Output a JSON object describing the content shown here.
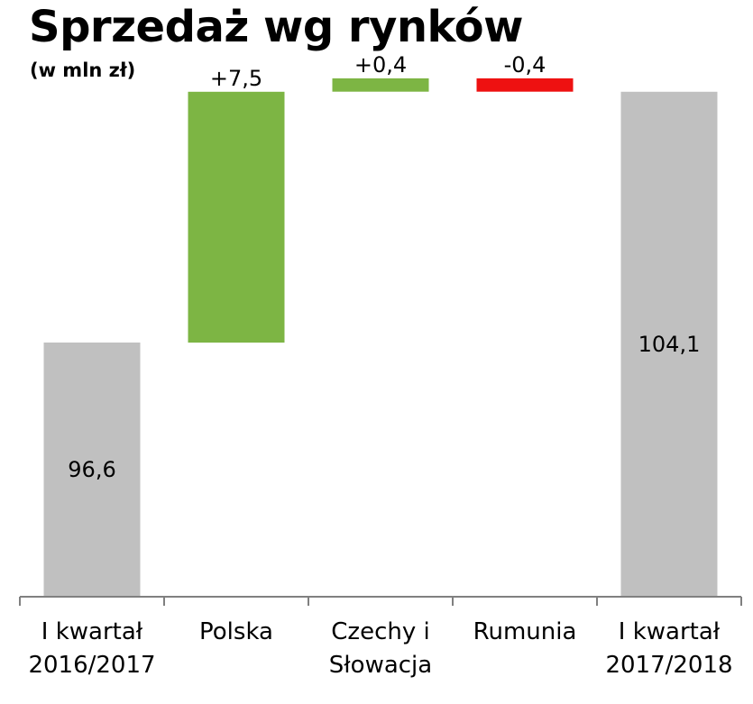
{
  "title": "Sprzedaż wg rynków",
  "subtitle": "(w mln zł)",
  "colors": {
    "total": "#c0c0c0",
    "increase": "#7db544",
    "decrease": "#ee1111",
    "axis": "#808080"
  },
  "chart_data": {
    "type": "bar",
    "subtype": "waterfall",
    "title": "Sprzedaż wg rynków",
    "subtitle": "(w mln zł)",
    "categories": [
      [
        "I kwartał",
        "2016/2017"
      ],
      [
        "Polska"
      ],
      [
        "Czechy i",
        "Słowacja"
      ],
      [
        "Rumunia"
      ],
      [
        "I kwartał",
        "2017/2018"
      ]
    ],
    "steps": [
      {
        "kind": "total",
        "value": 96.6,
        "label": "96,6"
      },
      {
        "kind": "increase",
        "value": 7.5,
        "label": "+7,5"
      },
      {
        "kind": "increase",
        "value": 0.4,
        "label": "+0,4"
      },
      {
        "kind": "decrease",
        "value": -0.4,
        "label": "-0,4"
      },
      {
        "kind": "total",
        "value": 104.1,
        "label": "104,1"
      }
    ],
    "ylim": [
      0,
      112
    ],
    "grid": false,
    "legend": "none"
  }
}
